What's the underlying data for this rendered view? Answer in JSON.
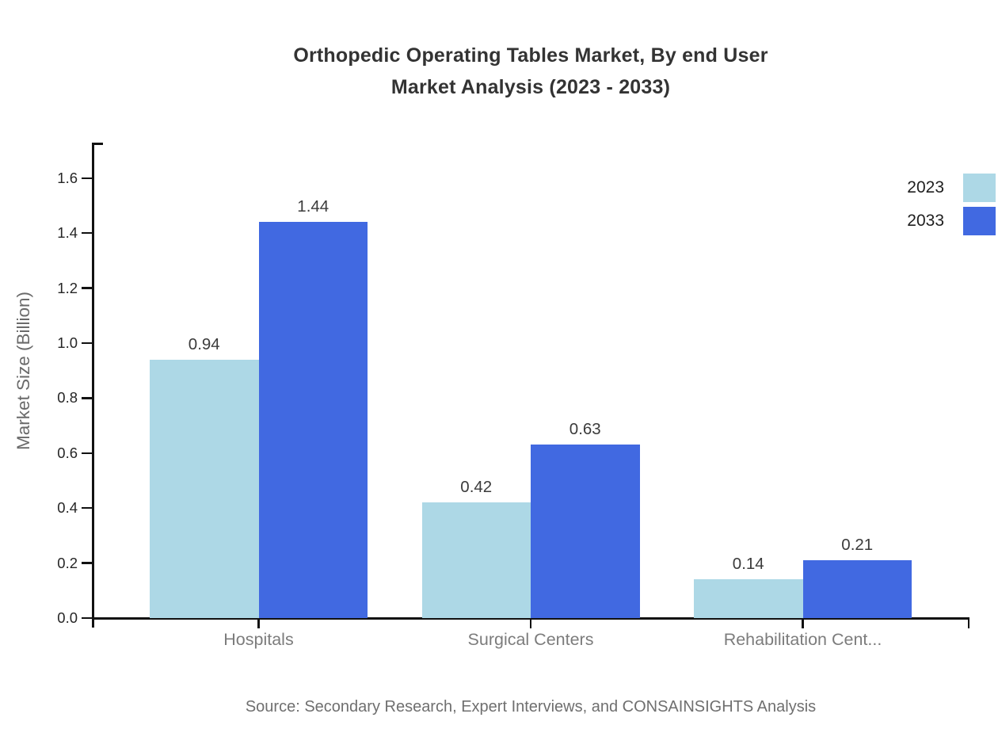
{
  "page": {
    "background": "#ffffff"
  },
  "title": {
    "line1": "Orthopedic Operating Tables Market, By end User",
    "line2": "Market Analysis (2023 - 2033)",
    "color": "#333333"
  },
  "source_note": "Source: Secondary Research, Expert Interviews, and CONSAINSIGHTS Analysis",
  "legend": {
    "position": "right",
    "entries": [
      {
        "label": "2023",
        "color": "#ADD8E6"
      },
      {
        "label": "2033",
        "color": "#4169E1"
      }
    ]
  },
  "chart_data": {
    "type": "bar",
    "title": "Orthopedic Operating Tables Market, By end User Market Analysis (2023 - 2033)",
    "categories": [
      "Hospitals",
      "Surgical Centers",
      "Rehabilitation Cent..."
    ],
    "series": [
      {
        "name": "2023",
        "color": "#ADD8E6",
        "values": [
          0.94,
          0.42,
          0.14
        ]
      },
      {
        "name": "2033",
        "color": "#4169E1",
        "values": [
          1.44,
          0.63,
          0.21
        ]
      }
    ],
    "value_labels": [
      "0.94",
      "1.44",
      "0.42",
      "0.63",
      "0.14",
      "0.21"
    ],
    "xlabel": "",
    "ylabel": "Market Size (Billion)",
    "ylim": [
      0.0,
      1.75
    ],
    "yticks": [
      "0.0",
      "0.2",
      "0.4",
      "0.6",
      "0.8",
      "1.0",
      "1.2",
      "1.4",
      "1.6"
    ],
    "grid": false,
    "legend_position": "right",
    "axis_color": "#111111",
    "tick_label_color": "#262626",
    "category_label_color": "#7c7c7c"
  }
}
